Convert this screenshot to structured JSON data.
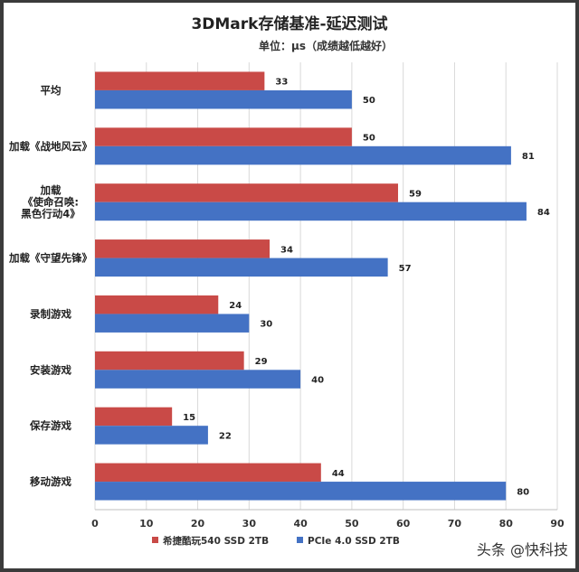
{
  "chart_data": {
    "type": "bar",
    "orientation": "horizontal",
    "title": "3DMark存储基准-延迟测试",
    "subtitle": "单位：μs（成绩越低越好）",
    "categories": [
      "平均",
      "加载《战地风云》",
      "加载\n《使命召唤:\n黑色行动4》",
      "加载《守望先锋》",
      "录制游戏",
      "安装游戏",
      "保存游戏",
      "移动游戏"
    ],
    "series": [
      {
        "name": "希捷酷玩540 SSD 2TB",
        "color": "#c94a47",
        "values": [
          33,
          50,
          59,
          34,
          24,
          29,
          15,
          44
        ]
      },
      {
        "name": "PCIe 4.0 SSD 2TB",
        "color": "#4472c4",
        "values": [
          50,
          81,
          84,
          57,
          30,
          40,
          22,
          80
        ]
      }
    ],
    "xlim": [
      0,
      90
    ],
    "xticks": [
      0,
      10,
      20,
      30,
      40,
      50,
      60,
      70,
      80,
      90
    ],
    "legend": "bottom"
  },
  "watermark": "头条 @快科技"
}
